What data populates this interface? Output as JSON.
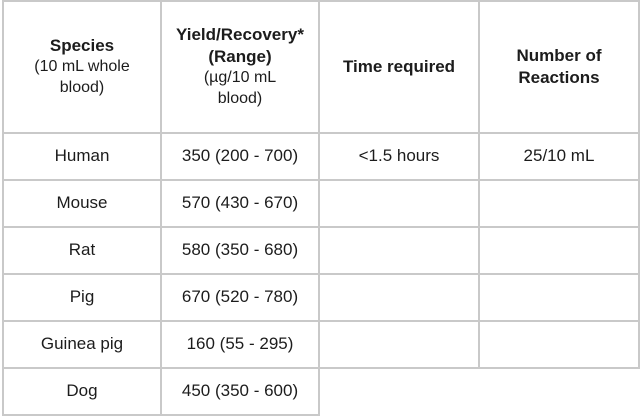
{
  "table": {
    "headers": {
      "species": {
        "title": "Species",
        "sub1": "(10 mL whole",
        "sub2": "blood)"
      },
      "yield": {
        "title1": "Yield/Recovery*",
        "title2": "(Range)",
        "sub1": "(µg/10 mL",
        "sub2": "blood)"
      },
      "time": {
        "title": "Time required"
      },
      "reactions": {
        "title1": "Number of",
        "title2": "Reactions"
      }
    },
    "rows": [
      {
        "species": "Human",
        "yield": "350 (200 - 700)",
        "time": "<1.5 hours",
        "reactions": "25/10 mL"
      },
      {
        "species": "Mouse",
        "yield": "570 (430 - 670)",
        "time": "",
        "reactions": ""
      },
      {
        "species": "Rat",
        "yield": "580 (350 - 680)",
        "time": "",
        "reactions": ""
      },
      {
        "species": "Pig",
        "yield": "670 (520 - 780)",
        "time": "",
        "reactions": ""
      },
      {
        "species": "Guinea pig",
        "yield": "160 (55 - 295)",
        "time": "",
        "reactions": ""
      },
      {
        "species": "Dog",
        "yield": "450 (350 - 600)",
        "time": "",
        "reactions": ""
      }
    ]
  }
}
